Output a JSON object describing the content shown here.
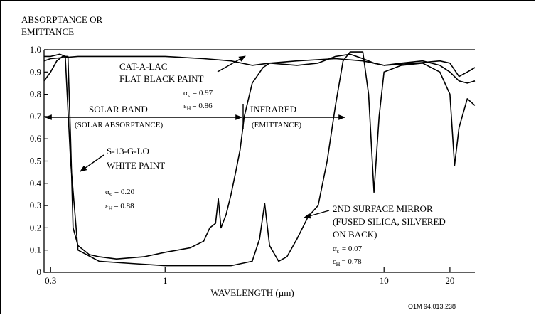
{
  "chart_data": {
    "type": "line",
    "ylabel": [
      "ABSORPTANCE OR",
      "EMITTANCE"
    ],
    "xlabel": "WAVELENGTH (µm)",
    "log_x": true,
    "xlim": [
      0.28,
      26
    ],
    "xticks": [
      0.3,
      1,
      10,
      20
    ],
    "ylim": [
      0,
      1
    ],
    "yticks": [
      0,
      0.1,
      0.2,
      0.3,
      0.4,
      0.5,
      0.6,
      0.7,
      0.8,
      0.9,
      {
        "value": 1,
        "label": "1.0"
      }
    ],
    "series": [
      {
        "color": "#000000",
        "x": [
          0.28,
          0.3,
          0.4,
          0.6,
          1,
          1.5,
          2,
          2.5,
          3,
          4,
          6,
          8,
          10,
          14,
          18,
          20,
          22,
          24,
          26
        ],
        "values": [
          0.95,
          0.96,
          0.97,
          0.97,
          0.97,
          0.96,
          0.95,
          0.93,
          0.94,
          0.95,
          0.96,
          0.95,
          0.93,
          0.94,
          0.95,
          0.94,
          0.88,
          0.9,
          0.92
        ]
      },
      {
        "color": "#000000",
        "x": [
          0.28,
          0.3,
          0.32,
          0.34,
          0.36,
          0.37,
          0.38,
          0.4,
          0.45,
          0.5,
          0.6,
          0.8,
          1,
          1.3,
          1.5,
          1.6,
          1.7,
          1.75,
          1.8,
          1.9,
          2,
          2.1,
          2.2,
          2.3,
          2.5,
          2.8,
          3,
          4,
          5,
          6,
          7,
          8,
          9,
          10,
          12,
          15,
          18,
          20,
          22,
          24,
          26
        ],
        "values": [
          0.86,
          0.9,
          0.95,
          0.97,
          0.97,
          0.6,
          0.2,
          0.12,
          0.08,
          0.07,
          0.06,
          0.07,
          0.09,
          0.11,
          0.14,
          0.2,
          0.22,
          0.33,
          0.2,
          0.26,
          0.35,
          0.45,
          0.55,
          0.7,
          0.85,
          0.92,
          0.94,
          0.93,
          0.94,
          0.97,
          0.98,
          0.96,
          0.94,
          0.93,
          0.94,
          0.95,
          0.93,
          0.9,
          0.86,
          0.85,
          0.86
        ]
      },
      {
        "color": "#000000",
        "x": [
          0.28,
          0.3,
          0.33,
          0.35,
          0.37,
          0.4,
          0.5,
          0.7,
          1,
          1.5,
          2,
          2.5,
          2.7,
          2.85,
          3,
          3.3,
          3.6,
          4,
          4.5,
          5,
          5.5,
          6,
          6.5,
          7,
          8,
          8.5,
          9,
          9.5,
          10,
          12,
          15,
          18,
          20,
          21,
          22,
          24,
          26
        ],
        "values": [
          0.97,
          0.97,
          0.98,
          0.97,
          0.5,
          0.1,
          0.05,
          0.04,
          0.03,
          0.03,
          0.03,
          0.05,
          0.15,
          0.31,
          0.12,
          0.05,
          0.07,
          0.15,
          0.25,
          0.3,
          0.5,
          0.75,
          0.95,
          0.99,
          0.99,
          0.8,
          0.36,
          0.7,
          0.9,
          0.93,
          0.94,
          0.9,
          0.8,
          0.48,
          0.65,
          0.78,
          0.75
        ]
      }
    ],
    "alpha_symbol": "α",
    "alpha_sub": "s",
    "epsilon_symbol": "ε",
    "epsilon_sub": "H",
    "annotations": [
      {
        "lines": [
          "CAT-A-LAC",
          "FLAT BLACK PAINT"
        ],
        "alpha": "= 0.97",
        "epsilon": "= 0.86"
      },
      {
        "lines": [
          "S-13-G-LO",
          "WHITE PAINT"
        ],
        "alpha": "= 0.20",
        "epsilon": "= 0.88"
      },
      {
        "lines": [
          "2ND SURFACE MIRROR",
          "(FUSED SILICA, SILVERED",
          "ON BACK)"
        ],
        "alpha": "= 0.07",
        "epsilon": "= 0.78"
      }
    ],
    "bands": [
      {
        "label": "SOLAR BAND",
        "sublabel": "(SOLAR ABSORPTANCE)"
      },
      {
        "label": "INFRARED",
        "sublabel": "(EMITTANCE)"
      }
    ],
    "footer": "O1M 94.013.238"
  }
}
